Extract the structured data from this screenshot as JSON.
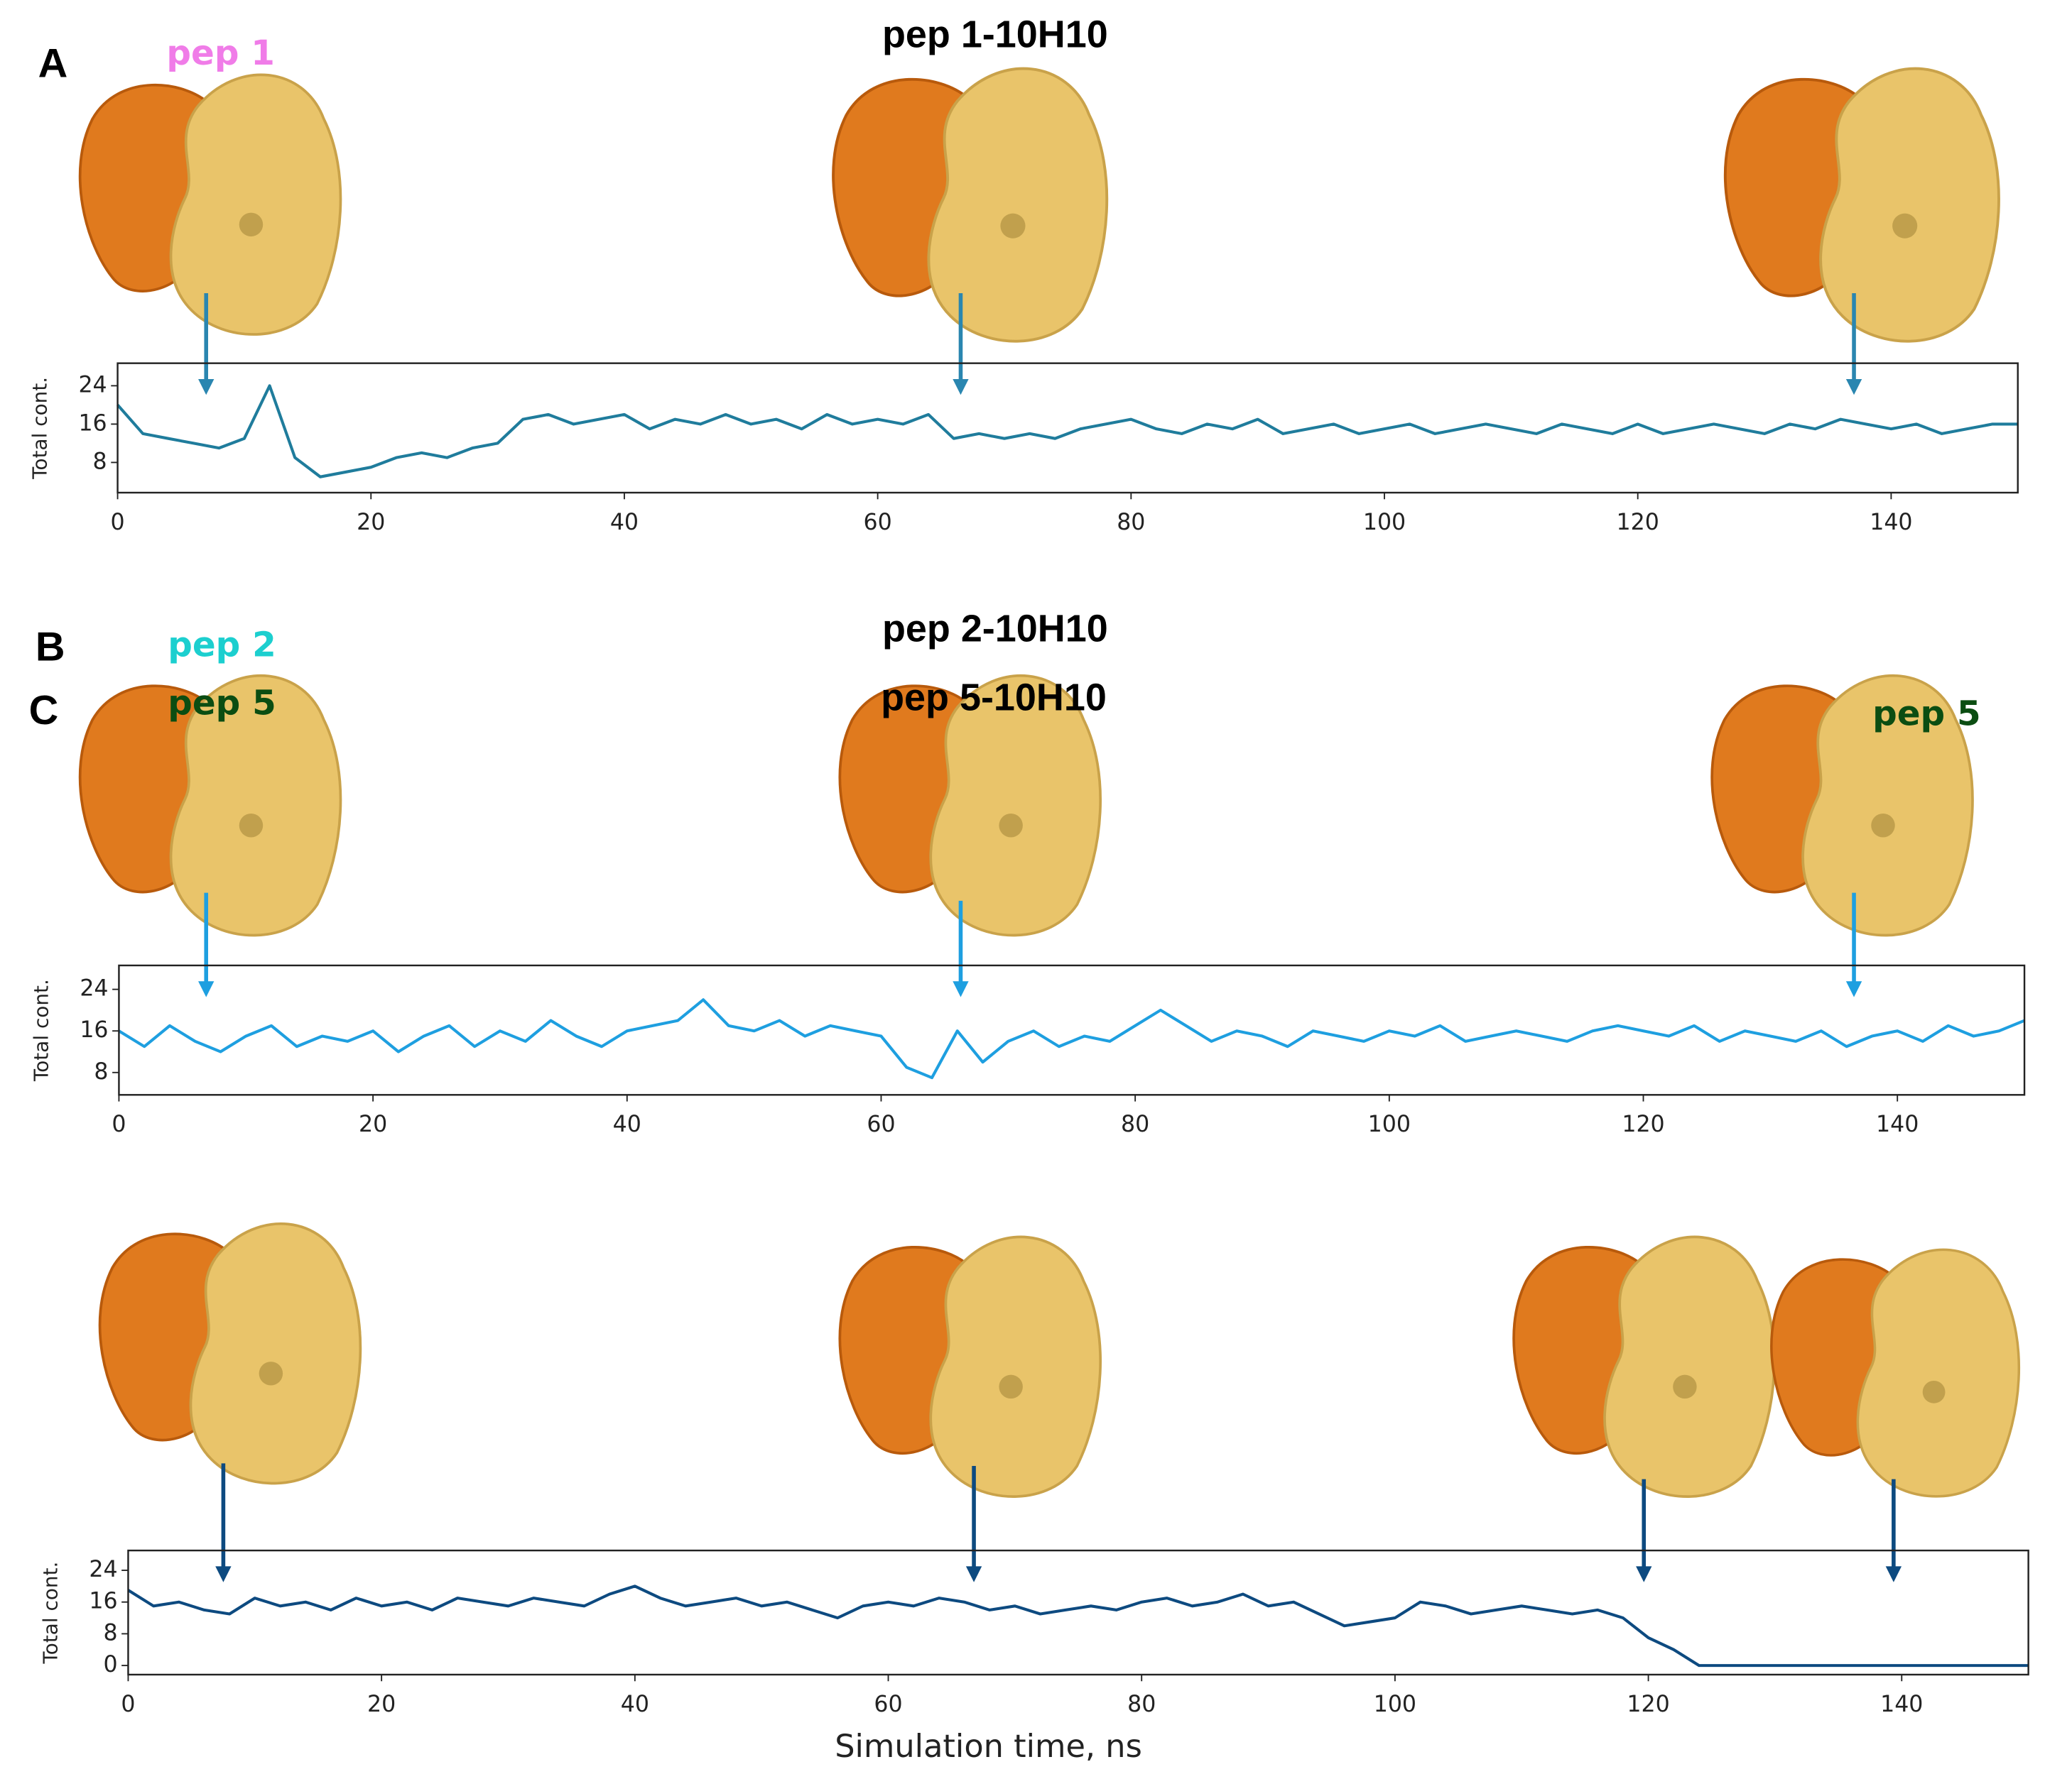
{
  "chart_data": [
    {
      "type": "line",
      "panel": "A",
      "title": "pep 1-10H10",
      "annotations": [
        "pep 1"
      ],
      "annotation_color": "#f07ce8",
      "ylabel": "Total cont.",
      "x": [
        0,
        2,
        4,
        6,
        8,
        10,
        12,
        14,
        16,
        18,
        20,
        22,
        24,
        26,
        28,
        30,
        32,
        34,
        36,
        38,
        40,
        42,
        44,
        46,
        48,
        50,
        52,
        54,
        56,
        58,
        60,
        62,
        64,
        66,
        68,
        70,
        72,
        74,
        76,
        78,
        80,
        82,
        84,
        86,
        88,
        90,
        92,
        94,
        96,
        98,
        100,
        102,
        104,
        106,
        108,
        110,
        112,
        114,
        116,
        118,
        120,
        122,
        124,
        126,
        128,
        130,
        132,
        134,
        136,
        138,
        140,
        142,
        144,
        146,
        148,
        150
      ],
      "values": [
        20,
        14,
        13,
        12,
        11,
        13,
        24,
        9,
        5,
        6,
        7,
        9,
        10,
        9,
        11,
        12,
        17,
        18,
        16,
        17,
        18,
        15,
        17,
        16,
        18,
        16,
        17,
        15,
        18,
        16,
        17,
        16,
        18,
        13,
        14,
        13,
        14,
        13,
        15,
        16,
        17,
        15,
        14,
        16,
        15,
        17,
        14,
        15,
        16,
        14,
        15,
        16,
        14,
        15,
        16,
        15,
        14,
        16,
        15,
        14,
        16,
        14,
        15,
        16,
        15,
        14,
        16,
        15,
        17,
        16,
        15,
        16,
        14,
        15,
        16,
        16
      ],
      "color": "#1f7c9c",
      "xlim": [
        0,
        150
      ],
      "xticks": [
        0,
        20,
        40,
        60,
        80,
        100,
        120,
        140
      ],
      "ylim": [
        1.7,
        28.7
      ],
      "yticks": [
        8,
        16,
        24
      ]
    },
    {
      "type": "line",
      "panel": "B",
      "title": "pep 2-10H10",
      "annotations": [
        "pep 2"
      ],
      "annotation_color": "#1ccfcf",
      "ylabel": "Total cont.",
      "x": [
        0,
        2,
        4,
        6,
        8,
        10,
        12,
        14,
        16,
        18,
        20,
        22,
        24,
        26,
        28,
        30,
        32,
        34,
        36,
        38,
        40,
        42,
        44,
        46,
        48,
        50,
        52,
        54,
        56,
        58,
        60,
        62,
        64,
        66,
        68,
        70,
        72,
        74,
        76,
        78,
        80,
        82,
        84,
        86,
        88,
        90,
        92,
        94,
        96,
        98,
        100,
        102,
        104,
        106,
        108,
        110,
        112,
        114,
        116,
        118,
        120,
        122,
        124,
        126,
        128,
        130,
        132,
        134,
        136,
        138,
        140,
        142,
        144,
        146,
        148,
        150
      ],
      "values": [
        16,
        13,
        17,
        14,
        12,
        15,
        17,
        13,
        15,
        14,
        16,
        12,
        15,
        17,
        13,
        16,
        14,
        18,
        15,
        13,
        16,
        17,
        18,
        22,
        17,
        16,
        18,
        15,
        17,
        16,
        15,
        9,
        7,
        16,
        10,
        14,
        16,
        13,
        15,
        14,
        17,
        20,
        17,
        14,
        16,
        15,
        13,
        16,
        15,
        14,
        16,
        15,
        17,
        14,
        15,
        16,
        15,
        14,
        16,
        17,
        16,
        15,
        17,
        14,
        16,
        15,
        14,
        16,
        13,
        15,
        16,
        14,
        17,
        15,
        16,
        18
      ],
      "color": "#1e9fe0",
      "xlim": [
        0,
        150
      ],
      "xticks": [
        0,
        20,
        40,
        60,
        80,
        100,
        120,
        140
      ],
      "ylim": [
        3.7,
        28.6
      ],
      "yticks": [
        8,
        16,
        24
      ]
    },
    {
      "type": "line",
      "panel": "C",
      "title": "pep 5-10H10",
      "annotations": [
        "pep 5",
        "pep 5"
      ],
      "annotation_color": "#0b4d12",
      "ylabel": "Total cont.",
      "xlabel": "Simulation time, ns",
      "x": [
        0,
        2,
        4,
        6,
        8,
        10,
        12,
        14,
        16,
        18,
        20,
        22,
        24,
        26,
        28,
        30,
        32,
        34,
        36,
        38,
        40,
        42,
        44,
        46,
        48,
        50,
        52,
        54,
        56,
        58,
        60,
        62,
        64,
        66,
        68,
        70,
        72,
        74,
        76,
        78,
        80,
        82,
        84,
        86,
        88,
        90,
        92,
        94,
        96,
        98,
        100,
        102,
        104,
        106,
        108,
        110,
        112,
        114,
        116,
        118,
        120,
        122,
        124,
        126,
        128,
        130,
        132,
        134,
        136,
        138,
        140,
        142,
        144,
        146,
        148,
        150
      ],
      "values": [
        19,
        15,
        16,
        14,
        13,
        17,
        15,
        16,
        14,
        17,
        15,
        16,
        14,
        17,
        16,
        15,
        17,
        16,
        15,
        18,
        20,
        17,
        15,
        16,
        17,
        15,
        16,
        14,
        12,
        15,
        16,
        15,
        17,
        16,
        14,
        15,
        13,
        14,
        15,
        14,
        16,
        17,
        15,
        16,
        18,
        15,
        16,
        13,
        10,
        11,
        12,
        16,
        15,
        13,
        14,
        15,
        14,
        13,
        14,
        12,
        7,
        4,
        0,
        0,
        0,
        0,
        0,
        0,
        0,
        0,
        0,
        0,
        0,
        0,
        0,
        0
      ],
      "color": "#0d4a80",
      "xlim": [
        0,
        150
      ],
      "xticks": [
        0,
        20,
        40,
        60,
        80,
        100,
        120,
        140
      ],
      "ylim": [
        -2.3,
        29
      ],
      "yticks": [
        0,
        8,
        16,
        24
      ]
    }
  ]
}
